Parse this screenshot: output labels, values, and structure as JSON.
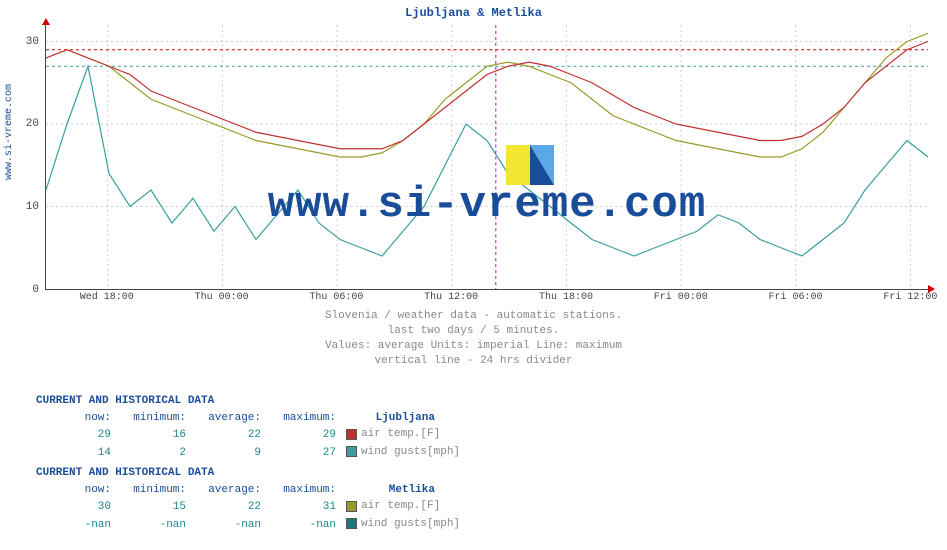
{
  "site_url": "www.si-vreme.com",
  "chart": {
    "title": "Ljubljana & Metlika",
    "watermark": "www.si-vreme.com",
    "y_axis": {
      "ticks": [
        0,
        10,
        20,
        30
      ],
      "min": 0,
      "max": 32
    },
    "x_axis": {
      "ticks": [
        "Wed 18:00",
        "Thu 00:00",
        "Thu 06:00",
        "Thu 12:00",
        "Thu 18:00",
        "Fri 00:00",
        "Fri 06:00",
        "Fri 12:00"
      ],
      "tick_positions_pct": [
        7,
        20,
        33,
        46,
        59,
        72,
        85,
        98
      ]
    },
    "grid_color": "#cccccc",
    "hrule_color_dashed_red": "#cc0000",
    "hrule_color_dashed_cyan": "#3a9e9e",
    "vline_24h_color": "#cc00cc",
    "vline_24h_pos_pct": 51,
    "background_color": "#ffffff",
    "subcaptions": [
      "Slovenia / weather data - automatic stations.",
      "last two days / 5 minutes.",
      "Values: average  Units: imperial  Line: maximum",
      "vertical line - 24 hrs  divider"
    ],
    "series": {
      "ljubljana_temp": {
        "color": "#c23030",
        "values": [
          28,
          29,
          28,
          27,
          26,
          24,
          23,
          22,
          21,
          20,
          19,
          18.5,
          18,
          17.5,
          17,
          17,
          17,
          18,
          20,
          22,
          24,
          26,
          27,
          27.5,
          27,
          26,
          25,
          23.5,
          22,
          21,
          20,
          19.5,
          19,
          18.5,
          18,
          18,
          18.5,
          20,
          22,
          25,
          27,
          29,
          30
        ]
      },
      "ljubljana_wind": {
        "color": "#3a9e9e",
        "values": [
          12,
          20,
          27,
          14,
          10,
          12,
          8,
          11,
          7,
          10,
          6,
          9,
          12,
          8,
          6,
          5,
          4,
          7,
          10,
          15,
          20,
          18,
          14,
          12,
          10,
          8,
          6,
          5,
          4,
          5,
          6,
          7,
          9,
          8,
          6,
          5,
          4,
          6,
          8,
          12,
          15,
          18,
          16
        ]
      },
      "metlika_temp": {
        "color": "#9a9a28",
        "values": [
          28,
          29,
          28,
          27,
          25,
          23,
          22,
          21,
          20,
          19,
          18,
          17.5,
          17,
          16.5,
          16,
          16,
          16.5,
          18,
          20,
          23,
          25,
          27,
          27.5,
          27,
          26,
          25,
          23,
          21,
          20,
          19,
          18,
          17.5,
          17,
          16.5,
          16,
          16,
          17,
          19,
          22,
          25,
          28,
          30,
          31
        ]
      }
    }
  },
  "tables": {
    "headers": [
      "now:",
      "minimum:",
      "average:",
      "maximum:"
    ],
    "section_title": "CURRENT AND HISTORICAL DATA",
    "stations": [
      {
        "name": "Ljubljana",
        "rows": [
          {
            "label": "air temp.[F]",
            "color": "#c23030",
            "values": [
              "29",
              "16",
              "22",
              "29"
            ]
          },
          {
            "label": "wind gusts[mph]",
            "color": "#3a9e9e",
            "values": [
              "14",
              "2",
              "9",
              "27"
            ]
          }
        ]
      },
      {
        "name": "Metlika",
        "rows": [
          {
            "label": "air temp.[F]",
            "color": "#9a9a28",
            "values": [
              "30",
              "15",
              "22",
              "31"
            ]
          },
          {
            "label": "wind gusts[mph]",
            "color": "#1a7a7a",
            "values": [
              "-nan",
              "-nan",
              "-nan",
              "-nan"
            ]
          }
        ]
      }
    ]
  }
}
